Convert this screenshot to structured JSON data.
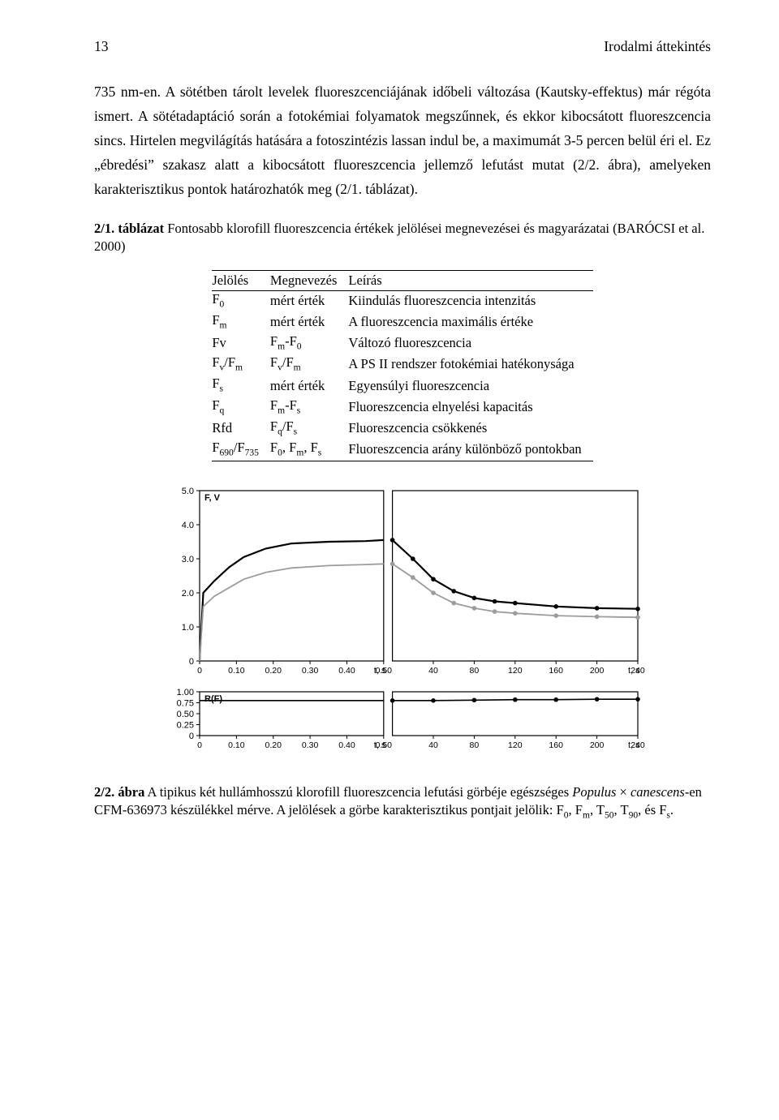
{
  "header": {
    "page_no": "13",
    "section": "Irodalmi áttekintés"
  },
  "para_html": "735 nm-en. A sötétben tárolt levelek fluoreszcenciájának időbeli változása (Kautsky-effektus) már régóta ismert. A sötétadaptáció során a fotokémiai folyamatok megszűnnek, és ekkor kibocsátott fluoreszcencia sincs. Hirtelen megvilágítás hatására a fotoszintézis lassan indul be, a maximumát 3-5 percen belül éri el. Ez „ébredési” szakasz alatt a kibocsátott fluoreszcencia jellemző lefutást mutat (2/2. ábra), amelyeken karakterisztikus pontok határozhatók meg (2/1. táblázat).",
  "table_caption_html": "<b>2/1. táblázat</b> Fontosabb klorofill fluoreszcencia értékek jelölései megnevezései és magyarázatai (BARÓCSI et al. 2000)",
  "table": {
    "head": [
      "Jelölés",
      "Megnevezés",
      "Leírás"
    ],
    "rows": [
      [
        "F<sub>0</sub>",
        "mért érték",
        "Kiindulás fluoreszcencia intenzitás"
      ],
      [
        "F<sub>m</sub>",
        "mért érték",
        "A fluoreszcencia maximális értéke"
      ],
      [
        "Fv",
        "F<sub>m</sub>-F<sub>0</sub>",
        "Változó fluoreszcencia"
      ],
      [
        "F<sub>v</sub>/F<sub>m</sub>",
        "F<sub>v</sub>/F<sub>m</sub>",
        "A PS II rendszer fotokémiai hatékonysága"
      ],
      [
        "F<sub>s</sub>",
        "mért érték",
        "Egyensúlyi fluoreszcencia"
      ],
      [
        "F<sub>q</sub>",
        "F<sub>m</sub>-F<sub>s</sub>",
        "Fluoreszcencia elnyelési kapacitás"
      ],
      [
        "Rfd",
        "F<sub>q</sub>/F<sub>s</sub>",
        "Fluoreszcencia csökkenés"
      ],
      [
        "F<sub>690</sub>/F<sub>735</sub>",
        "F<sub>0</sub>, F<sub>m</sub>, F<sub>s</sub>",
        "Fluoreszcencia arány különböző pontokban"
      ]
    ]
  },
  "figure": {
    "top": {
      "y_label": "F, V",
      "y_ticks": [
        "0",
        "1.0",
        "2.0",
        "3.0",
        "4.0",
        "5.0"
      ],
      "y_range": [
        0,
        5
      ],
      "x1_ticks": [
        "0",
        "0.10",
        "0.20",
        "0.30",
        "0.40",
        "0.50"
      ],
      "x1_range": [
        0,
        0.5
      ],
      "x1_label": "t, s",
      "x2_ticks": [
        "40",
        "80",
        "120",
        "160",
        "200",
        "240"
      ],
      "x2_range": [
        0,
        240
      ],
      "x2_label": "t, s",
      "series": [
        {
          "panel": 1,
          "color": "#000000",
          "width": 2.2,
          "pts": [
            [
              0.0,
              0.0
            ],
            [
              0.01,
              2.0
            ],
            [
              0.04,
              2.35
            ],
            [
              0.08,
              2.75
            ],
            [
              0.12,
              3.05
            ],
            [
              0.18,
              3.3
            ],
            [
              0.25,
              3.45
            ],
            [
              0.35,
              3.5
            ],
            [
              0.45,
              3.52
            ],
            [
              0.5,
              3.55
            ]
          ]
        },
        {
          "panel": 1,
          "color": "#9c9c9c",
          "width": 1.8,
          "pts": [
            [
              0.0,
              0.0
            ],
            [
              0.01,
              1.6
            ],
            [
              0.04,
              1.9
            ],
            [
              0.08,
              2.15
            ],
            [
              0.12,
              2.4
            ],
            [
              0.18,
              2.6
            ],
            [
              0.25,
              2.73
            ],
            [
              0.35,
              2.8
            ],
            [
              0.45,
              2.83
            ],
            [
              0.5,
              2.85
            ]
          ]
        },
        {
          "panel": 2,
          "color": "#000000",
          "width": 2.2,
          "markers": true,
          "pts": [
            [
              0,
              3.55
            ],
            [
              20,
              3.0
            ],
            [
              40,
              2.4
            ],
            [
              60,
              2.05
            ],
            [
              80,
              1.85
            ],
            [
              100,
              1.75
            ],
            [
              120,
              1.7
            ],
            [
              160,
              1.6
            ],
            [
              200,
              1.55
            ],
            [
              240,
              1.53
            ]
          ]
        },
        {
          "panel": 2,
          "color": "#9c9c9c",
          "width": 1.8,
          "markers": true,
          "pts": [
            [
              0,
              2.85
            ],
            [
              20,
              2.45
            ],
            [
              40,
              2.0
            ],
            [
              60,
              1.7
            ],
            [
              80,
              1.55
            ],
            [
              100,
              1.45
            ],
            [
              120,
              1.4
            ],
            [
              160,
              1.33
            ],
            [
              200,
              1.3
            ],
            [
              240,
              1.28
            ]
          ]
        }
      ]
    },
    "bottom": {
      "y_label": "R(F)",
      "y_ticks": [
        "0",
        "0.25",
        "0.50",
        "0.75",
        "1.00"
      ],
      "y_range": [
        0,
        1
      ],
      "x1_ticks": [
        "0",
        "0.10",
        "0.20",
        "0.30",
        "0.40",
        "0.50"
      ],
      "x1_range": [
        0,
        0.5
      ],
      "x1_label": "t, s",
      "x2_ticks": [
        "40",
        "80",
        "120",
        "160",
        "200",
        "240"
      ],
      "x2_range": [
        0,
        240
      ],
      "x2_label": "t, s",
      "series": [
        {
          "panel": 1,
          "color": "#000000",
          "width": 1.6,
          "pts": [
            [
              0.0,
              0.8
            ],
            [
              0.1,
              0.8
            ],
            [
              0.2,
              0.8
            ],
            [
              0.3,
              0.8
            ],
            [
              0.4,
              0.8
            ],
            [
              0.5,
              0.8
            ]
          ]
        },
        {
          "panel": 2,
          "color": "#000000",
          "width": 1.6,
          "markers": true,
          "pts": [
            [
              0,
              0.8
            ],
            [
              40,
              0.8
            ],
            [
              80,
              0.81
            ],
            [
              120,
              0.82
            ],
            [
              160,
              0.82
            ],
            [
              200,
              0.83
            ],
            [
              240,
              0.83
            ]
          ]
        }
      ]
    },
    "axis_color": "#000000",
    "grid_color": "#bfbfbf",
    "bg": "#ffffff"
  },
  "fig_caption_html": "<b>2/2. ábra</b> A tipikus két hullámhosszú klorofill fluoreszcencia lefutási görbéje egészséges <em>Populus</em> × <em>canescens</em>-en CFM-636973 készülékkel mérve. A jelölések a görbe karakterisztikus pontjait jelölik: F<sub>0</sub>, F<sub>m</sub>, T<sub>50</sub>, T<sub>90</sub>, és F<sub>s</sub>."
}
